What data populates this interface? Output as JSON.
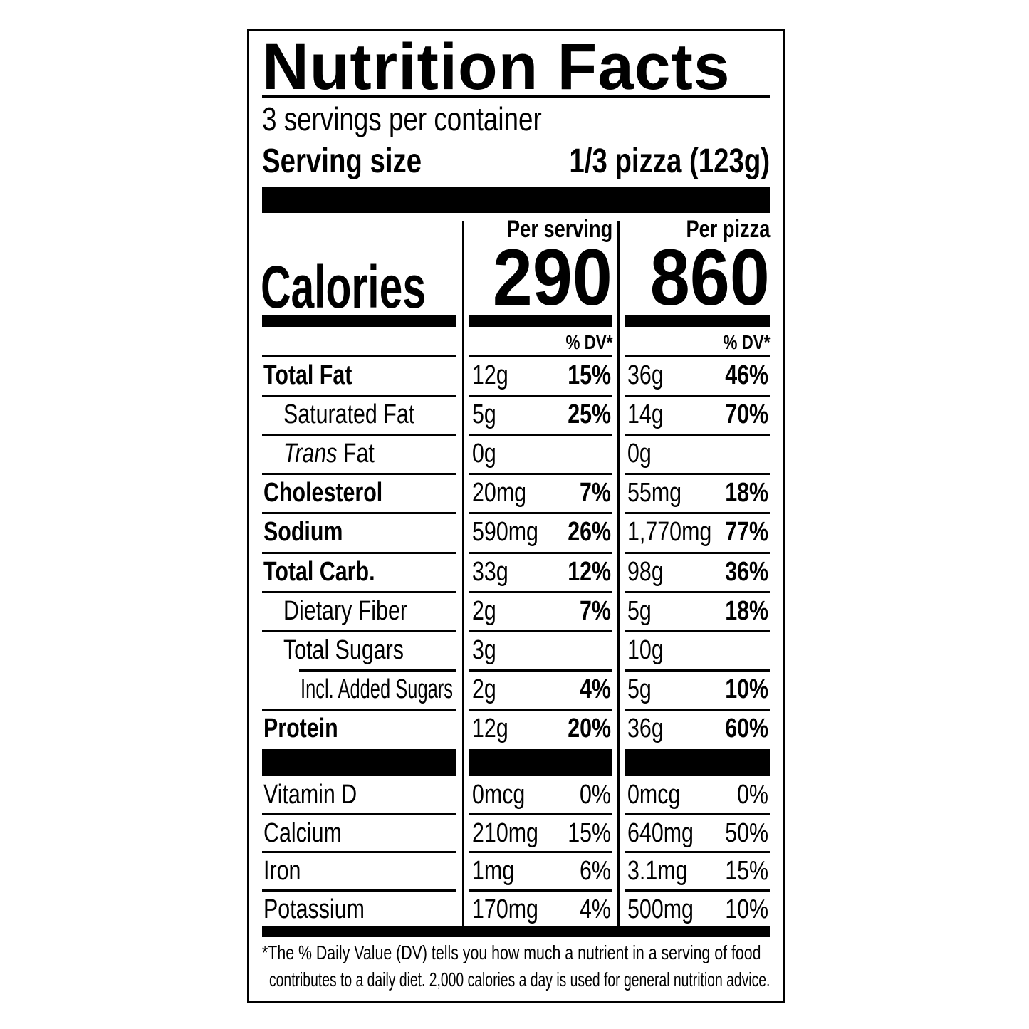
{
  "title": "Nutrition Facts",
  "servings_per_container": "3 servings per container",
  "serving_size_label": "Serving size",
  "serving_size_value": "1/3 pizza (123g)",
  "calories_label": "Calories",
  "columns": [
    {
      "header": "Per serving",
      "calories": "290",
      "dv_header": "% DV*"
    },
    {
      "header": "Per pizza",
      "calories": "860",
      "dv_header": "% DV*"
    }
  ],
  "nutrients": [
    {
      "label": "Total Fat",
      "bold": true,
      "indent": 0,
      "values": [
        [
          "12g",
          "15%"
        ],
        [
          "36g",
          "46%"
        ]
      ]
    },
    {
      "label": "Saturated Fat",
      "bold": false,
      "indent": 1,
      "values": [
        [
          "5g",
          "25%"
        ],
        [
          "14g",
          "70%"
        ]
      ]
    },
    {
      "label": " Fat",
      "italic_prefix": "Trans",
      "bold": false,
      "indent": 1,
      "values": [
        [
          "0g",
          ""
        ],
        [
          "0g",
          ""
        ]
      ]
    },
    {
      "label": "Cholesterol",
      "bold": true,
      "indent": 0,
      "values": [
        [
          "20mg",
          "7%"
        ],
        [
          "55mg",
          "18%"
        ]
      ]
    },
    {
      "label": "Sodium",
      "bold": true,
      "indent": 0,
      "values": [
        [
          "590mg",
          "26%"
        ],
        [
          "1,770mg",
          "77%"
        ]
      ]
    },
    {
      "label": "Total Carb.",
      "bold": true,
      "indent": 0,
      "values": [
        [
          "33g",
          "12%"
        ],
        [
          "98g",
          "36%"
        ]
      ]
    },
    {
      "label": "Dietary Fiber",
      "bold": false,
      "indent": 1,
      "values": [
        [
          "2g",
          "7%"
        ],
        [
          "5g",
          "18%"
        ]
      ]
    },
    {
      "label": "Total Sugars",
      "bold": false,
      "indent": 1,
      "values": [
        [
          "3g",
          ""
        ],
        [
          "10g",
          ""
        ]
      ]
    },
    {
      "label": "Incl. Added Sugars",
      "bold": false,
      "indent": 2,
      "values": [
        [
          "2g",
          "4%"
        ],
        [
          "5g",
          "10%"
        ]
      ]
    },
    {
      "label": "Protein",
      "bold": true,
      "indent": 0,
      "values": [
        [
          "12g",
          "20%"
        ],
        [
          "36g",
          "60%"
        ]
      ]
    }
  ],
  "micronutrients": [
    {
      "label": "Vitamin D",
      "values": [
        [
          "0mcg",
          "0%"
        ],
        [
          "0mcg",
          "0%"
        ]
      ]
    },
    {
      "label": "Calcium",
      "values": [
        [
          "210mg",
          "15%"
        ],
        [
          "640mg",
          "50%"
        ]
      ]
    },
    {
      "label": "Iron",
      "values": [
        [
          "1mg",
          "6%"
        ],
        [
          "3.1mg",
          "15%"
        ]
      ]
    },
    {
      "label": "Potassium",
      "values": [
        [
          "170mg",
          "4%"
        ],
        [
          "500mg",
          "10%"
        ]
      ]
    }
  ],
  "footnote_line1": "*The % Daily Value (DV) tells you how much a nutrient in a serving of food",
  "footnote_line2": "contributes to a daily diet. 2,000 calories a day is used for general nutrition advice."
}
